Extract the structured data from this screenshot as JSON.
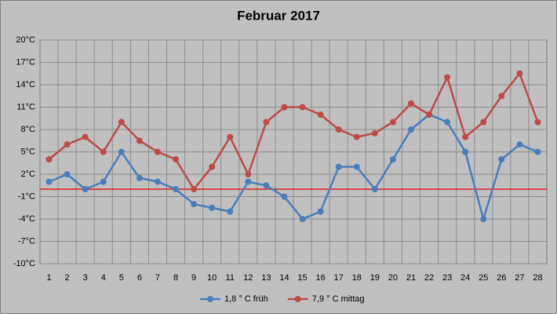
{
  "chart_data": {
    "type": "line",
    "title": "Februar 2017",
    "categories": [
      "1",
      "2",
      "3",
      "4",
      "5",
      "6",
      "7",
      "8",
      "9",
      "10",
      "11",
      "12",
      "13",
      "14",
      "15",
      "16",
      "17",
      "18",
      "19",
      "20",
      "21",
      "22",
      "23",
      "24",
      "25",
      "26",
      "27",
      "28"
    ],
    "series": [
      {
        "name": "1,8 ° C früh",
        "color": "#4a7ebb",
        "values": [
          1,
          2,
          0,
          1,
          5,
          1.5,
          1,
          0,
          -2,
          -2.5,
          -3,
          1,
          0.5,
          -1,
          -4,
          -3,
          3,
          3,
          0,
          4,
          8,
          10,
          9,
          5,
          -4,
          4,
          6,
          5
        ]
      },
      {
        "name": "7,9 ° C mittag",
        "color": "#be4b48",
        "values": [
          4,
          6,
          7,
          5,
          9,
          6.5,
          5,
          4,
          0,
          3,
          7,
          2,
          9,
          11,
          11,
          10,
          8,
          7,
          7.5,
          9,
          11.5,
          10,
          15,
          7,
          9,
          12.5,
          15.5,
          9
        ]
      }
    ],
    "ylim": [
      -10,
      20
    ],
    "yticks": [
      {
        "value": -10,
        "label": "-10°C"
      },
      {
        "value": -7,
        "label": "-7°C"
      },
      {
        "value": -4,
        "label": "-4°C"
      },
      {
        "value": -1,
        "label": "-1°C"
      },
      {
        "value": 2,
        "label": "2°C"
      },
      {
        "value": 5,
        "label": "5°C"
      },
      {
        "value": 8,
        "label": "8°C"
      },
      {
        "value": 11,
        "label": "11°C"
      },
      {
        "value": 14,
        "label": "14°C"
      },
      {
        "value": 17,
        "label": "17°C"
      },
      {
        "value": 20,
        "label": "20°C"
      }
    ],
    "reference_line": {
      "value": 0,
      "color": "#e00000"
    },
    "grid": true,
    "legend": "bottom"
  }
}
